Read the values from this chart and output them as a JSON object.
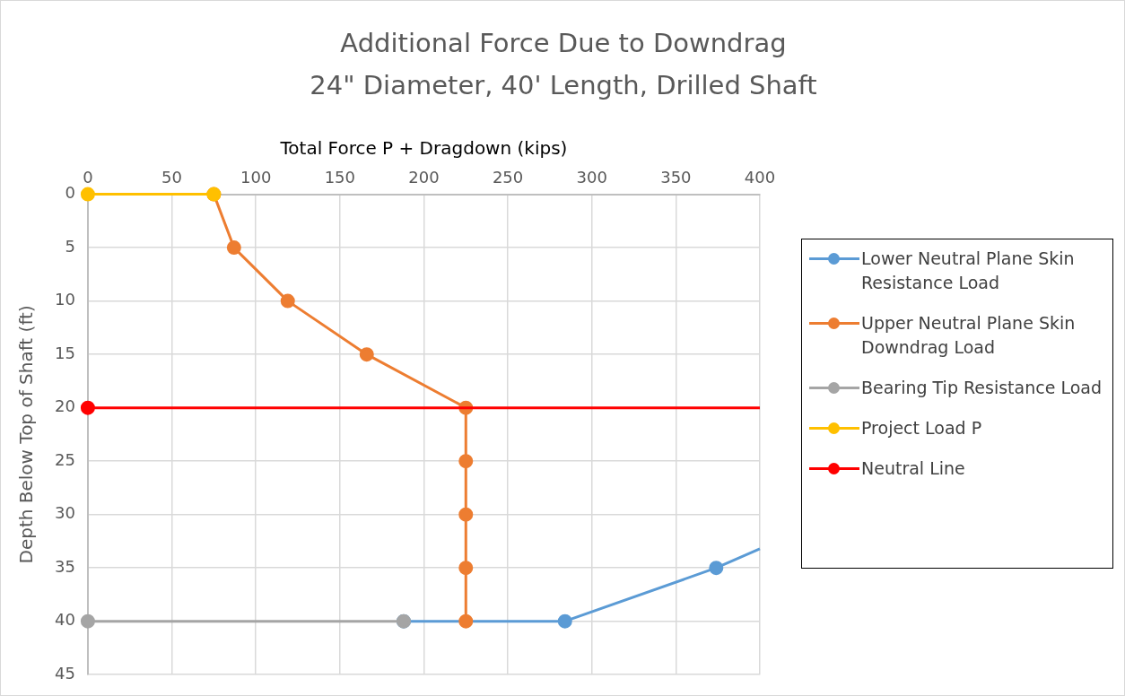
{
  "chart_data": {
    "type": "line",
    "title": "Additional Force Due to Downdrag",
    "subtitle": "24\" Diameter, 40' Length, Drilled Shaft",
    "xlabel": "Total Force P + Dragdown (kips)",
    "ylabel": "Depth Below Top of Shaft (ft)",
    "xlim": [
      0,
      400
    ],
    "xticks": [
      0,
      50,
      100,
      150,
      200,
      250,
      300,
      350,
      400
    ],
    "ylim": [
      45,
      0
    ],
    "yticks": [
      0,
      5,
      10,
      15,
      20,
      25,
      30,
      35,
      40,
      45
    ],
    "grid": true,
    "legend": "right",
    "marker": "circle",
    "line_style": "solid",
    "series": [
      {
        "name": "Lower Neutral Plane Skin Resistance Load",
        "color": "#5b9bd5",
        "x": [
          188,
          284,
          374,
          400
        ],
        "values": [
          40,
          40,
          35,
          33.2
        ]
      },
      {
        "name": "Upper Neutral Plane Skin Downdrag Load",
        "color": "#ed7d31",
        "x": [
          75,
          87,
          119,
          166,
          225,
          225,
          225,
          225,
          225
        ],
        "values": [
          0,
          5,
          10,
          15,
          20,
          25,
          30,
          35,
          40
        ]
      },
      {
        "name": "Bearing Tip Resistance Load",
        "color": "#a5a5a5",
        "x": [
          0,
          188
        ],
        "values": [
          40,
          40
        ]
      },
      {
        "name": "Project Load P",
        "color": "#ffc000",
        "x": [
          0,
          75
        ],
        "values": [
          0,
          0
        ]
      },
      {
        "name": "Neutral Line",
        "color": "#ff0000",
        "x": [
          0,
          400
        ],
        "values": [
          20,
          20
        ]
      }
    ]
  }
}
